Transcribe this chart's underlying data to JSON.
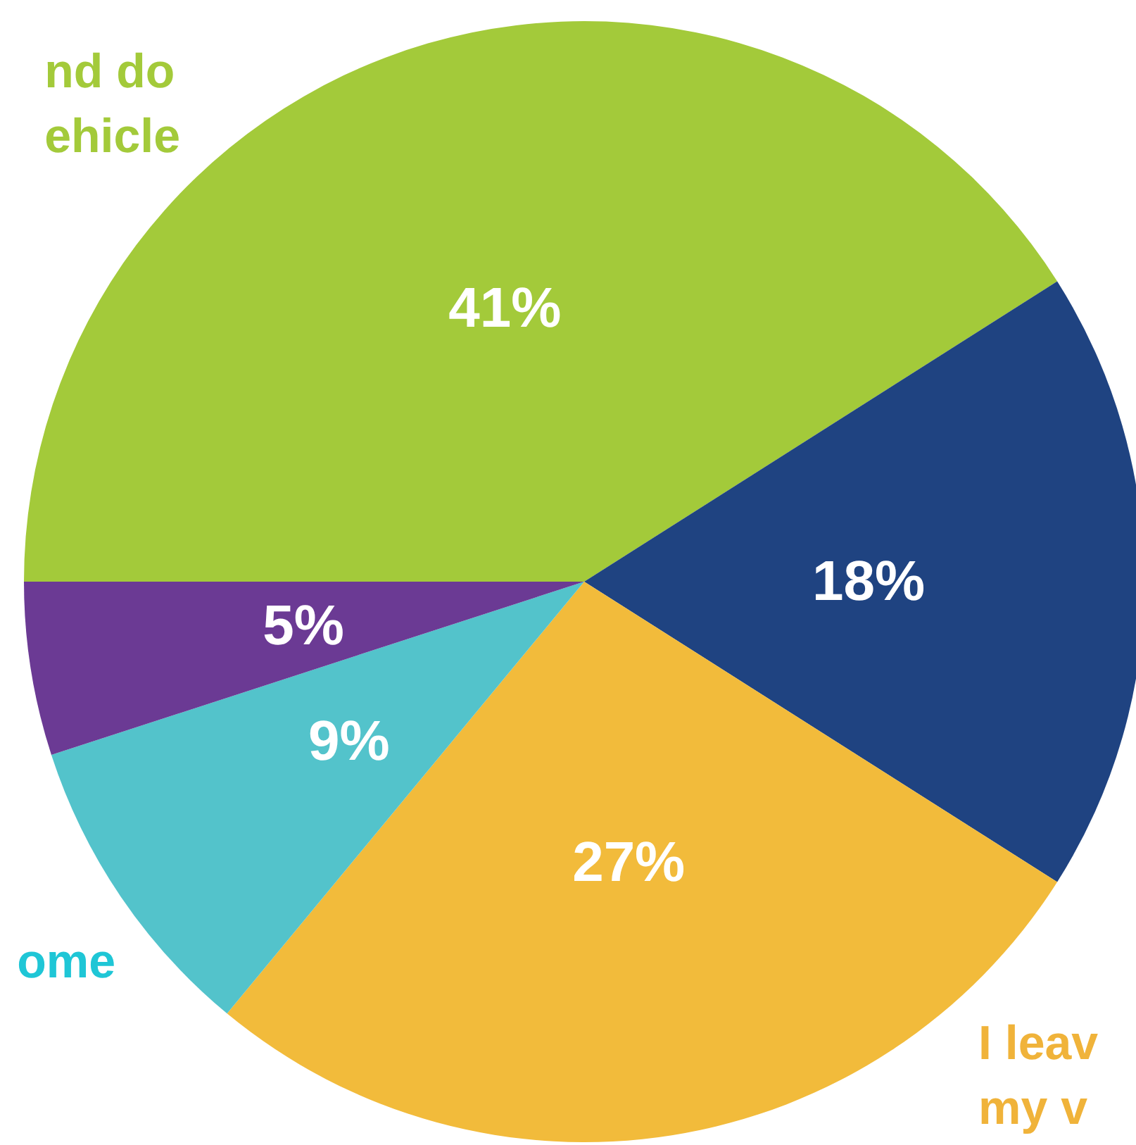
{
  "chart_data": {
    "type": "pie",
    "categories": [
      null,
      null,
      null,
      null,
      null
    ],
    "values": [
      41,
      18,
      27,
      9,
      5
    ],
    "value_labels": [
      "41%",
      "18%",
      "27%",
      "9%",
      "5%"
    ],
    "colors": [
      "#a3ca3a",
      "#1f4381",
      "#f2bb3b",
      "#53c3cb",
      "#6b3a94"
    ],
    "annotations": [
      "nd do\nehicle",
      "ome",
      "I leav\nmy v"
    ]
  }
}
